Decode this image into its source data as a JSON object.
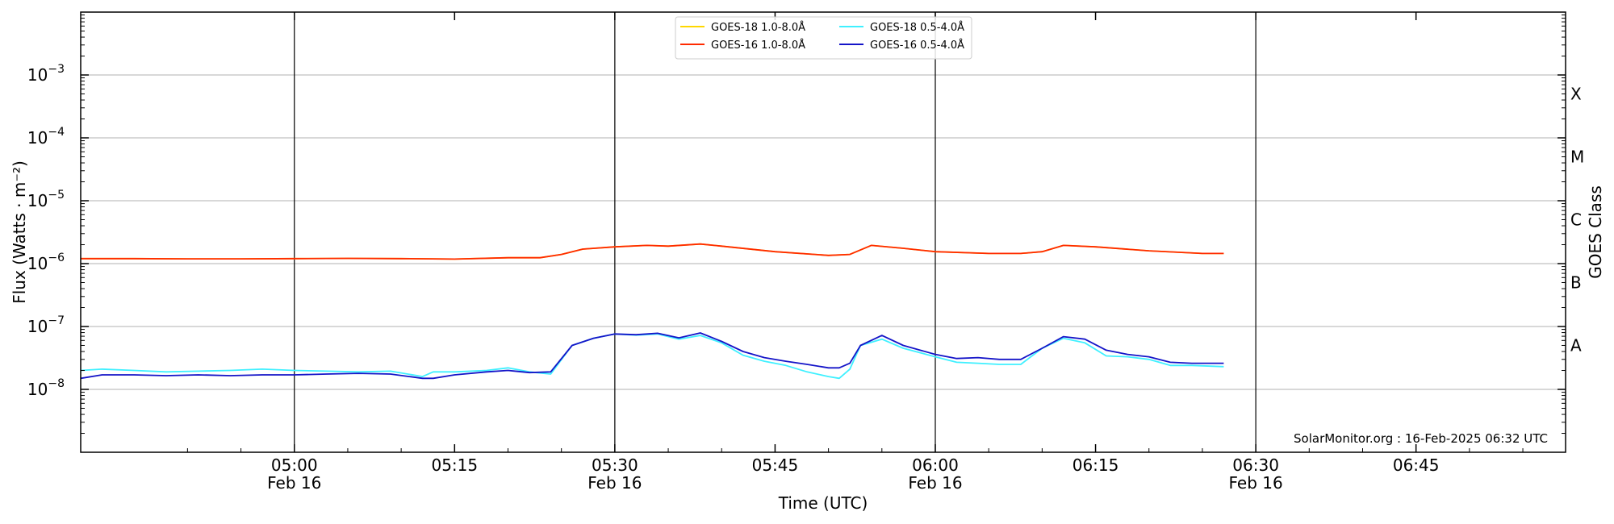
{
  "chart_data": {
    "type": "line",
    "xlabel": "Time (UTC)",
    "ylabel": "Flux (Watts · m⁻²)",
    "y2label": "GOES Class",
    "yscale": "log",
    "ylim": [
      1e-09,
      0.01
    ],
    "xlim": [
      "04:40",
      "06:59"
    ],
    "grid": "horizontal at decades",
    "legend_position": "top-center",
    "credit": "SolarMonitor.org : 16-Feb-2025 06:32 UTC",
    "x_ticks": [
      {
        "time": "05:00",
        "label": "05:00",
        "date": "Feb 16"
      },
      {
        "time": "05:15",
        "label": "05:15",
        "date": ""
      },
      {
        "time": "05:30",
        "label": "05:30",
        "date": "Feb 16"
      },
      {
        "time": "05:45",
        "label": "05:45",
        "date": ""
      },
      {
        "time": "06:00",
        "label": "06:00",
        "date": "Feb 16"
      },
      {
        "time": "06:15",
        "label": "06:15",
        "date": ""
      },
      {
        "time": "06:30",
        "label": "06:30",
        "date": "Feb 16"
      },
      {
        "time": "06:45",
        "label": "06:45",
        "date": ""
      }
    ],
    "vlines": [
      "05:00",
      "05:30",
      "06:00",
      "06:30"
    ],
    "y_ticks": [
      {
        "value": 1e-08,
        "base": "10",
        "exp": "−8"
      },
      {
        "value": 1e-07,
        "base": "10",
        "exp": "−7"
      },
      {
        "value": 1e-06,
        "base": "10",
        "exp": "−6"
      },
      {
        "value": 1e-05,
        "base": "10",
        "exp": "−5"
      },
      {
        "value": 0.0001,
        "base": "10",
        "exp": "−4"
      },
      {
        "value": 0.001,
        "base": "10",
        "exp": "−3"
      }
    ],
    "classes": [
      {
        "label": "A",
        "value": 5e-08
      },
      {
        "label": "B",
        "value": 5e-07
      },
      {
        "label": "C",
        "value": 5e-06
      },
      {
        "label": "M",
        "value": 5e-05
      },
      {
        "label": "X",
        "value": 0.0005
      }
    ],
    "series": [
      {
        "name": "GOES-18 1.0-8.0Å",
        "color": "#ffd700",
        "x": [
          "04:40",
          "04:45",
          "04:50",
          "04:55",
          "05:00",
          "05:05",
          "05:10",
          "05:15",
          "05:20",
          "05:23",
          "05:25",
          "05:27",
          "05:30",
          "05:33",
          "05:35",
          "05:38",
          "05:40",
          "05:45",
          "05:50",
          "05:52",
          "05:54",
          "05:57",
          "06:00",
          "06:05",
          "06:08",
          "06:10",
          "06:12",
          "06:15",
          "06:20",
          "06:25",
          "06:27"
        ],
        "y": [
          1.2e-06,
          1.2e-06,
          1.19e-06,
          1.19e-06,
          1.2e-06,
          1.21e-06,
          1.2e-06,
          1.18e-06,
          1.24e-06,
          1.24e-06,
          1.4e-06,
          1.7e-06,
          1.85e-06,
          1.95e-06,
          1.9e-06,
          2.05e-06,
          1.9e-06,
          1.55e-06,
          1.35e-06,
          1.4e-06,
          1.95e-06,
          1.75e-06,
          1.55e-06,
          1.45e-06,
          1.45e-06,
          1.55e-06,
          1.95e-06,
          1.85e-06,
          1.6e-06,
          1.45e-06,
          1.45e-06
        ]
      },
      {
        "name": "GOES-16 1.0-8.0Å",
        "color": "#ff2a00",
        "x": [
          "04:40",
          "04:45",
          "04:50",
          "04:55",
          "05:00",
          "05:05",
          "05:10",
          "05:15",
          "05:20",
          "05:23",
          "05:25",
          "05:27",
          "05:30",
          "05:33",
          "05:35",
          "05:38",
          "05:40",
          "05:45",
          "05:50",
          "05:52",
          "05:54",
          "05:57",
          "06:00",
          "06:05",
          "06:08",
          "06:10",
          "06:12",
          "06:15",
          "06:20",
          "06:25",
          "06:27"
        ],
        "y": [
          1.2e-06,
          1.2e-06,
          1.19e-06,
          1.19e-06,
          1.2e-06,
          1.21e-06,
          1.2e-06,
          1.18e-06,
          1.24e-06,
          1.24e-06,
          1.4e-06,
          1.7e-06,
          1.85e-06,
          1.95e-06,
          1.9e-06,
          2.05e-06,
          1.9e-06,
          1.55e-06,
          1.35e-06,
          1.4e-06,
          1.95e-06,
          1.75e-06,
          1.55e-06,
          1.45e-06,
          1.45e-06,
          1.55e-06,
          1.95e-06,
          1.85e-06,
          1.6e-06,
          1.45e-06,
          1.45e-06
        ]
      },
      {
        "name": "GOES-18 0.5-4.0Å",
        "color": "#3ff0ff",
        "x": [
          "04:40",
          "04:42",
          "04:45",
          "04:48",
          "04:51",
          "04:54",
          "04:57",
          "05:00",
          "05:03",
          "05:06",
          "05:09",
          "05:12",
          "05:13",
          "05:15",
          "05:18",
          "05:20",
          "05:22",
          "05:24",
          "05:26",
          "05:28",
          "05:30",
          "05:32",
          "05:34",
          "05:36",
          "05:38",
          "05:40",
          "05:42",
          "05:44",
          "05:46",
          "05:48",
          "05:50",
          "05:51",
          "05:52",
          "05:53",
          "05:55",
          "05:57",
          "06:00",
          "06:02",
          "06:04",
          "06:06",
          "06:08",
          "06:10",
          "06:12",
          "06:14",
          "06:16",
          "06:18",
          "06:20",
          "06:22",
          "06:24",
          "06:27"
        ],
        "y": [
          2e-08,
          2.1e-08,
          2e-08,
          1.9e-08,
          1.95e-08,
          2e-08,
          2.1e-08,
          2e-08,
          1.95e-08,
          1.9e-08,
          1.95e-08,
          1.6e-08,
          1.9e-08,
          1.9e-08,
          2e-08,
          2.2e-08,
          1.9e-08,
          1.75e-08,
          5e-08,
          6.5e-08,
          7.6e-08,
          7.3e-08,
          7.6e-08,
          6.3e-08,
          7.2e-08,
          5.5e-08,
          3.5e-08,
          2.8e-08,
          2.4e-08,
          1.9e-08,
          1.6e-08,
          1.5e-08,
          2.1e-08,
          5e-08,
          6.3e-08,
          4.5e-08,
          3.3e-08,
          2.7e-08,
          2.6e-08,
          2.5e-08,
          2.5e-08,
          4.5e-08,
          6.5e-08,
          5.5e-08,
          3.4e-08,
          3.3e-08,
          3e-08,
          2.4e-08,
          2.4e-08,
          2.3e-08
        ]
      },
      {
        "name": "GOES-16 0.5-4.0Å",
        "color": "#1414c8",
        "x": [
          "04:40",
          "04:42",
          "04:45",
          "04:48",
          "04:51",
          "04:54",
          "04:57",
          "05:00",
          "05:03",
          "05:06",
          "05:09",
          "05:12",
          "05:13",
          "05:15",
          "05:18",
          "05:20",
          "05:22",
          "05:24",
          "05:26",
          "05:28",
          "05:30",
          "05:32",
          "05:34",
          "05:36",
          "05:38",
          "05:40",
          "05:42",
          "05:44",
          "05:46",
          "05:48",
          "05:50",
          "05:51",
          "05:52",
          "05:53",
          "05:55",
          "05:57",
          "06:00",
          "06:02",
          "06:04",
          "06:06",
          "06:08",
          "06:10",
          "06:12",
          "06:14",
          "06:16",
          "06:18",
          "06:20",
          "06:22",
          "06:24",
          "06:27"
        ],
        "y": [
          1.5e-08,
          1.7e-08,
          1.7e-08,
          1.65e-08,
          1.7e-08,
          1.65e-08,
          1.7e-08,
          1.7e-08,
          1.75e-08,
          1.8e-08,
          1.75e-08,
          1.5e-08,
          1.5e-08,
          1.7e-08,
          1.9e-08,
          2e-08,
          1.85e-08,
          1.9e-08,
          5e-08,
          6.5e-08,
          7.6e-08,
          7.4e-08,
          7.8e-08,
          6.6e-08,
          7.9e-08,
          5.8e-08,
          4e-08,
          3.2e-08,
          2.8e-08,
          2.5e-08,
          2.2e-08,
          2.2e-08,
          2.6e-08,
          5e-08,
          7.2e-08,
          5e-08,
          3.6e-08,
          3.1e-08,
          3.2e-08,
          3e-08,
          3e-08,
          4.5e-08,
          6.9e-08,
          6.3e-08,
          4.2e-08,
          3.6e-08,
          3.3e-08,
          2.7e-08,
          2.6e-08,
          2.6e-08
        ]
      }
    ]
  }
}
